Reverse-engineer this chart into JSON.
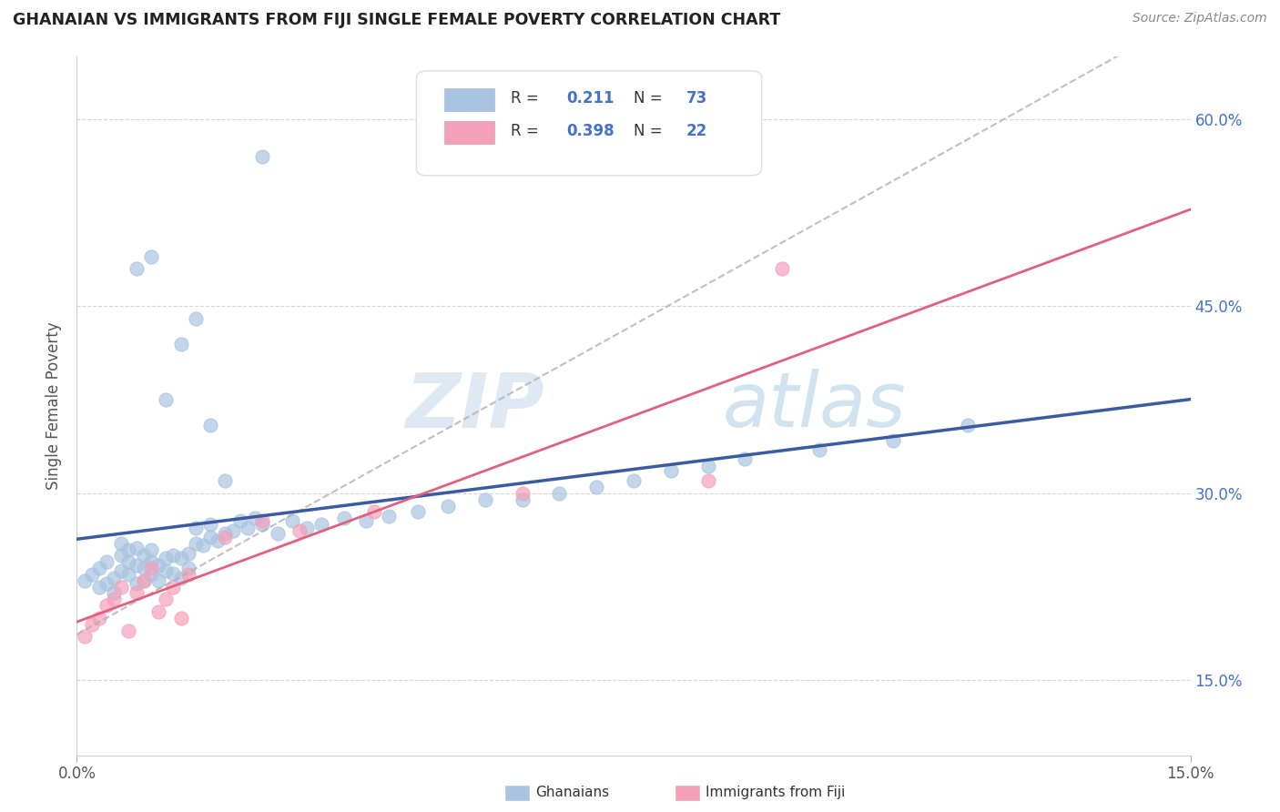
{
  "title": "GHANAIAN VS IMMIGRANTS FROM FIJI SINGLE FEMALE POVERTY CORRELATION CHART",
  "source": "Source: ZipAtlas.com",
  "ylabel": "Single Female Poverty",
  "xlim": [
    0.0,
    0.15
  ],
  "ylim": [
    0.09,
    0.65
  ],
  "xticks": [
    0.0,
    0.15
  ],
  "xtick_labels": [
    "0.0%",
    "15.0%"
  ],
  "yticks": [
    0.15,
    0.3,
    0.45,
    0.6
  ],
  "ytick_labels": [
    "15.0%",
    "30.0%",
    "45.0%",
    "60.0%"
  ],
  "color_blue": "#a8c4e0",
  "color_pink": "#f4a0b8",
  "line_blue": "#3a5ba0",
  "line_pink": "#e06080",
  "line_gray_dashed": "#b0b0b0",
  "watermark": "ZIPatlas",
  "ghanaians_x": [
    0.001,
    0.002,
    0.003,
    0.003,
    0.004,
    0.004,
    0.005,
    0.005,
    0.006,
    0.006,
    0.006,
    0.007,
    0.007,
    0.007,
    0.008,
    0.008,
    0.008,
    0.009,
    0.009,
    0.009,
    0.01,
    0.01,
    0.01,
    0.011,
    0.011,
    0.012,
    0.012,
    0.013,
    0.013,
    0.014,
    0.014,
    0.015,
    0.015,
    0.016,
    0.016,
    0.017,
    0.018,
    0.018,
    0.019,
    0.02,
    0.021,
    0.022,
    0.023,
    0.024,
    0.025,
    0.027,
    0.029,
    0.031,
    0.033,
    0.036,
    0.039,
    0.042,
    0.046,
    0.05,
    0.055,
    0.06,
    0.065,
    0.07,
    0.075,
    0.08,
    0.085,
    0.09,
    0.1,
    0.11,
    0.12,
    0.008,
    0.01,
    0.012,
    0.014,
    0.016,
    0.018,
    0.02,
    0.025
  ],
  "ghanaians_y": [
    0.23,
    0.235,
    0.225,
    0.24,
    0.228,
    0.245,
    0.232,
    0.22,
    0.238,
    0.25,
    0.26,
    0.235,
    0.245,
    0.255,
    0.228,
    0.242,
    0.256,
    0.23,
    0.24,
    0.25,
    0.235,
    0.245,
    0.255,
    0.23,
    0.242,
    0.238,
    0.248,
    0.236,
    0.25,
    0.232,
    0.248,
    0.24,
    0.252,
    0.26,
    0.272,
    0.258,
    0.265,
    0.275,
    0.262,
    0.268,
    0.27,
    0.278,
    0.272,
    0.28,
    0.275,
    0.268,
    0.278,
    0.272,
    0.275,
    0.28,
    0.278,
    0.282,
    0.285,
    0.29,
    0.295,
    0.295,
    0.3,
    0.305,
    0.31,
    0.318,
    0.322,
    0.328,
    0.335,
    0.342,
    0.355,
    0.48,
    0.49,
    0.375,
    0.42,
    0.44,
    0.355,
    0.31,
    0.57
  ],
  "fiji_x": [
    0.001,
    0.002,
    0.003,
    0.004,
    0.005,
    0.006,
    0.007,
    0.008,
    0.009,
    0.01,
    0.011,
    0.012,
    0.013,
    0.014,
    0.015,
    0.02,
    0.025,
    0.03,
    0.04,
    0.06,
    0.085,
    0.095
  ],
  "fiji_y": [
    0.185,
    0.195,
    0.2,
    0.21,
    0.215,
    0.225,
    0.19,
    0.22,
    0.23,
    0.24,
    0.205,
    0.215,
    0.225,
    0.2,
    0.235,
    0.265,
    0.278,
    0.27,
    0.285,
    0.3,
    0.31,
    0.48
  ]
}
